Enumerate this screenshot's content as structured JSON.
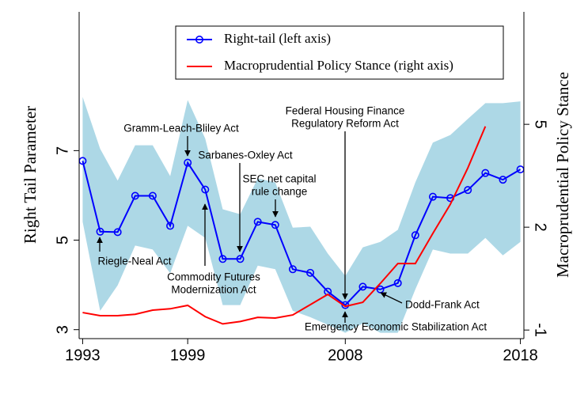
{
  "chart_data": {
    "type": "line",
    "x": [
      1993,
      1994,
      1995,
      1996,
      1997,
      1998,
      1999,
      2000,
      2001,
      2002,
      2003,
      2004,
      2005,
      2006,
      2007,
      2008,
      2009,
      2010,
      2011,
      2012,
      2013,
      2014,
      2015,
      2016,
      2017,
      2018
    ],
    "xlim": [
      1992.8,
      2018.2
    ],
    "xticks": [
      1993,
      1999,
      2008,
      2018
    ],
    "ylim": [
      2.8,
      10.1
    ],
    "yticks": [
      3,
      5,
      7
    ],
    "y2lim": [
      -1.25,
      8.28
    ],
    "y2ticks": [
      -1,
      2,
      5
    ],
    "y_label": "Right Tail Parameter",
    "y2_label": "Macroprudential Policy Stance",
    "series": [
      {
        "name": "Right-tail (left axis)",
        "color": "#0000ff",
        "marker": "circle",
        "values": [
          6.77,
          5.19,
          5.18,
          5.99,
          5.99,
          5.32,
          6.73,
          6.13,
          4.58,
          4.58,
          5.41,
          5.34,
          4.35,
          4.27,
          3.85,
          3.55,
          3.96,
          3.9,
          4.04,
          5.11,
          5.97,
          5.94,
          6.12,
          6.5,
          6.35,
          6.58
        ]
      },
      {
        "name": "Macroprudential Policy Stance (right axis)",
        "color": "#ff0000",
        "axis": "y2",
        "values": [
          -0.49,
          -0.58,
          -0.58,
          -0.54,
          -0.42,
          -0.38,
          -0.28,
          -0.61,
          -0.82,
          -0.75,
          -0.63,
          -0.65,
          -0.56,
          -0.26,
          0.04,
          -0.31,
          -0.19,
          0.36,
          0.94,
          0.94,
          1.82,
          2.67,
          3.73,
          4.94,
          null,
          null
        ]
      }
    ],
    "band": {
      "color": "#add8e6",
      "upper": [
        8.2,
        7.04,
        6.33,
        7.12,
        7.12,
        6.43,
        8.13,
        7.27,
        5.69,
        5.58,
        6.38,
        6.29,
        5.28,
        5.3,
        4.7,
        4.2,
        4.84,
        4.96,
        5.23,
        6.29,
        7.18,
        7.35,
        7.71,
        8.06,
        8.06,
        8.1
      ],
      "lower": [
        5.41,
        3.42,
        3.99,
        4.88,
        4.79,
        4.26,
        5.32,
        5.05,
        3.55,
        3.55,
        4.43,
        4.35,
        3.42,
        3.28,
        3.11,
        2.93,
        3.14,
        2.93,
        2.93,
        3.9,
        4.79,
        4.7,
        4.7,
        5.05,
        4.66,
        4.96
      ]
    },
    "annotations": [
      {
        "text": [
          "Gramm-Leach-Bliley Act"
        ]
      },
      {
        "text": [
          "Riegle-Neal Act"
        ]
      },
      {
        "text": [
          "Sarbanes-Oxley Act"
        ]
      },
      {
        "text": [
          "SEC net capital",
          "rule change"
        ]
      },
      {
        "text": [
          "Commodity Futures",
          "Modernization Act"
        ]
      },
      {
        "text": [
          "Federal Housing Finance",
          "Regulatory Reform Act"
        ]
      },
      {
        "text": [
          "Dodd-Frank Act"
        ]
      },
      {
        "text": [
          "Emergency Economic Stabilization Act"
        ]
      }
    ]
  }
}
